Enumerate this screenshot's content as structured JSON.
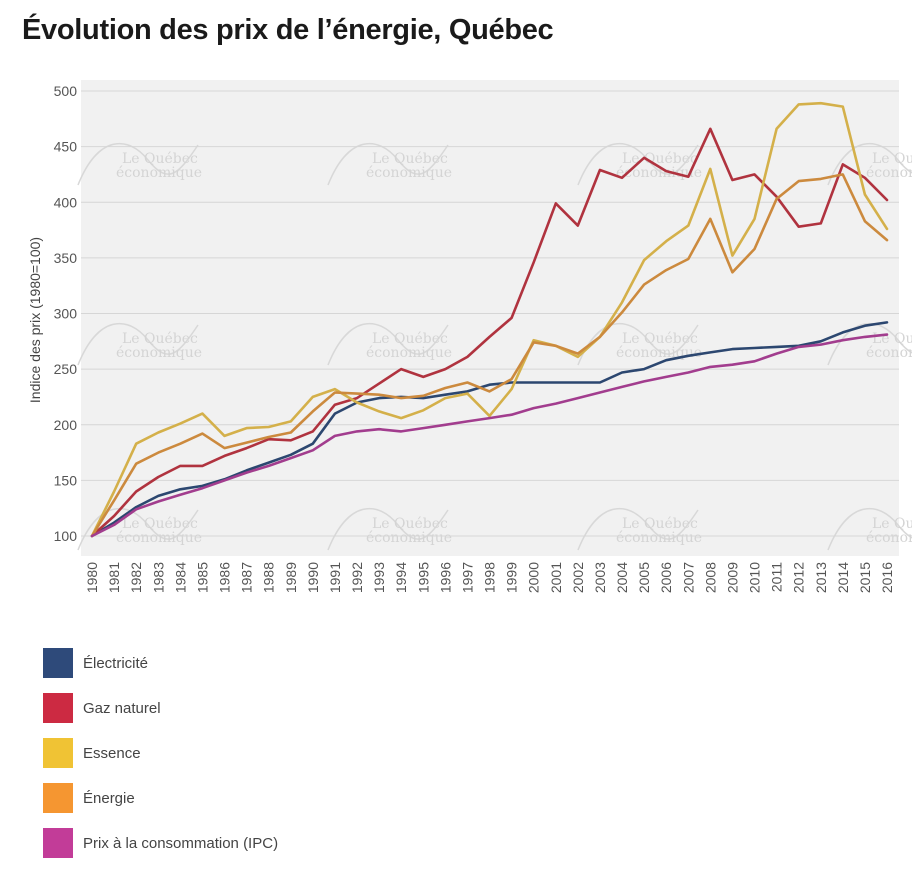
{
  "chart_data": {
    "type": "line",
    "title": "Évolution des prix de l’énergie, Québec",
    "ylabel": "Indice des prix (1980=100)",
    "xlabel": "",
    "ylim": [
      90,
      505
    ],
    "yticks": [
      100,
      150,
      200,
      250,
      300,
      350,
      400,
      450,
      500
    ],
    "grid": true,
    "legend_position": "bottom",
    "watermark": [
      "Le Québec",
      "économique"
    ],
    "x": [
      "1980",
      "1981",
      "1982",
      "1983",
      "1984",
      "1985",
      "1986",
      "1987",
      "1988",
      "1989",
      "1990",
      "1991",
      "1992",
      "1993",
      "1994",
      "1995",
      "1996",
      "1997",
      "1998",
      "1999",
      "2000",
      "2001",
      "2002",
      "2003",
      "2004",
      "2005",
      "2006",
      "2007",
      "2008",
      "2009",
      "2010",
      "2011",
      "2012",
      "2013",
      "2014",
      "2015",
      "2016"
    ],
    "series": [
      {
        "name": "Électricité",
        "color": "#2c4770",
        "legend_color": "#2e4a7a",
        "values": [
          100,
          112,
          126,
          136,
          142,
          145,
          151,
          159,
          166,
          173,
          183,
          210,
          220,
          224,
          225,
          224,
          227,
          230,
          236,
          238,
          238,
          238,
          238,
          238,
          247,
          250,
          258,
          262,
          265,
          268,
          269,
          270,
          271,
          275,
          283,
          289,
          292
        ]
      },
      {
        "name": "Gaz naturel",
        "color": "#b0333f",
        "legend_color": "#cc2a42",
        "values": [
          100,
          118,
          140,
          153,
          163,
          163,
          172,
          179,
          187,
          186,
          194,
          218,
          224,
          237,
          250,
          243,
          250,
          261,
          279,
          296,
          346,
          399,
          379,
          429,
          422,
          440,
          428,
          423,
          466,
          420,
          425,
          405,
          378,
          381,
          434,
          422,
          402
        ]
      },
      {
        "name": "Essence",
        "color": "#d4b04a",
        "legend_color": "#f0c334",
        "values": [
          100,
          140,
          183,
          193,
          201,
          210,
          190,
          197,
          198,
          203,
          225,
          232,
          220,
          212,
          206,
          213,
          224,
          228,
          208,
          232,
          276,
          271,
          261,
          279,
          310,
          348,
          365,
          379,
          430,
          352,
          385,
          466,
          488,
          489,
          486,
          407,
          376
        ]
      },
      {
        "name": "Énergie",
        "color": "#cc8a3e",
        "legend_color": "#f59631",
        "values": [
          100,
          132,
          165,
          175,
          183,
          192,
          179,
          184,
          189,
          193,
          212,
          229,
          228,
          227,
          224,
          226,
          233,
          238,
          230,
          241,
          274,
          271,
          264,
          279,
          301,
          326,
          339,
          349,
          385,
          337,
          358,
          403,
          419,
          421,
          425,
          383,
          366
        ]
      },
      {
        "name": "Prix à la consommation (IPC)",
        "color": "#a23d8e",
        "legend_color": "#c23c98",
        "values": [
          100,
          110,
          124,
          131,
          137,
          143,
          150,
          157,
          163,
          170,
          177,
          190,
          194,
          196,
          194,
          197,
          200,
          203,
          206,
          209,
          215,
          219,
          224,
          229,
          234,
          239,
          243,
          247,
          252,
          254,
          257,
          264,
          270,
          272,
          276,
          279,
          281
        ]
      }
    ]
  }
}
